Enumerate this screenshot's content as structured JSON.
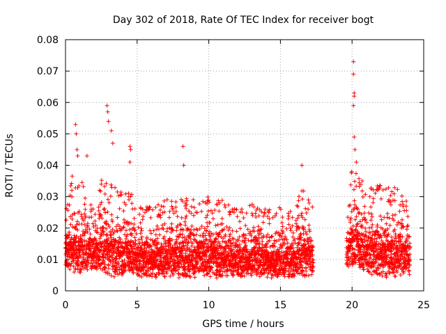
{
  "chart_data": {
    "type": "scatter",
    "title": "Day 302 of 2018, Rate Of TEC Index for receiver bogt",
    "xlabel": "GPS time / hours",
    "ylabel": "ROTI / TECUs",
    "xlim": [
      0,
      25
    ],
    "ylim": [
      0,
      0.08
    ],
    "xticks": [
      "0",
      "5",
      "10",
      "15",
      "20",
      "25"
    ],
    "yticks": [
      "0",
      "0.01",
      "0.02",
      "0.03",
      "0.04",
      "0.05",
      "0.06",
      "0.07",
      "0.08"
    ],
    "grid": true,
    "marker": "+",
    "color": "#ff0000",
    "series": [
      {
        "name": "ROTI",
        "envelope": [
          {
            "x": 0.0,
            "low": 0.007,
            "high": 0.025
          },
          {
            "x": 0.5,
            "low": 0.006,
            "high": 0.038
          },
          {
            "x": 1.0,
            "low": 0.005,
            "high": 0.036
          },
          {
            "x": 1.5,
            "low": 0.006,
            "high": 0.033
          },
          {
            "x": 2.0,
            "low": 0.007,
            "high": 0.026
          },
          {
            "x": 2.5,
            "low": 0.005,
            "high": 0.036
          },
          {
            "x": 3.0,
            "low": 0.005,
            "high": 0.035
          },
          {
            "x": 3.5,
            "low": 0.004,
            "high": 0.033
          },
          {
            "x": 4.0,
            "low": 0.004,
            "high": 0.031
          },
          {
            "x": 4.5,
            "low": 0.005,
            "high": 0.032
          },
          {
            "x": 5.0,
            "low": 0.004,
            "high": 0.027
          },
          {
            "x": 6.0,
            "low": 0.004,
            "high": 0.027
          },
          {
            "x": 7.0,
            "low": 0.004,
            "high": 0.029
          },
          {
            "x": 8.0,
            "low": 0.004,
            "high": 0.031
          },
          {
            "x": 9.0,
            "low": 0.004,
            "high": 0.029
          },
          {
            "x": 10.0,
            "low": 0.004,
            "high": 0.03
          },
          {
            "x": 11.0,
            "low": 0.004,
            "high": 0.029
          },
          {
            "x": 12.0,
            "low": 0.004,
            "high": 0.026
          },
          {
            "x": 13.0,
            "low": 0.004,
            "high": 0.028
          },
          {
            "x": 14.0,
            "low": 0.004,
            "high": 0.026
          },
          {
            "x": 15.0,
            "low": 0.004,
            "high": 0.027
          },
          {
            "x": 16.0,
            "low": 0.004,
            "high": 0.026
          },
          {
            "x": 16.5,
            "low": 0.004,
            "high": 0.034
          },
          {
            "x": 17.2,
            "low": 0.005,
            "high": 0.027
          },
          {
            "x": 19.7,
            "low": 0.007,
            "high": 0.024
          },
          {
            "x": 20.0,
            "low": 0.007,
            "high": 0.04
          },
          {
            "x": 21.0,
            "low": 0.005,
            "high": 0.033
          },
          {
            "x": 22.0,
            "low": 0.004,
            "high": 0.034
          },
          {
            "x": 23.0,
            "low": 0.004,
            "high": 0.033
          },
          {
            "x": 24.0,
            "low": 0.005,
            "high": 0.03
          }
        ],
        "gaps": [
          [
            17.3,
            19.6
          ]
        ],
        "peaks": [
          {
            "x": 0.7,
            "y": 0.053
          },
          {
            "x": 0.75,
            "y": 0.05
          },
          {
            "x": 0.8,
            "y": 0.045
          },
          {
            "x": 0.85,
            "y": 0.043
          },
          {
            "x": 1.5,
            "y": 0.043
          },
          {
            "x": 2.9,
            "y": 0.059
          },
          {
            "x": 2.95,
            "y": 0.057
          },
          {
            "x": 3.0,
            "y": 0.054
          },
          {
            "x": 3.2,
            "y": 0.051
          },
          {
            "x": 3.3,
            "y": 0.047
          },
          {
            "x": 4.5,
            "y": 0.046
          },
          {
            "x": 4.55,
            "y": 0.045
          },
          {
            "x": 4.5,
            "y": 0.041
          },
          {
            "x": 8.2,
            "y": 0.046
          },
          {
            "x": 8.25,
            "y": 0.04
          },
          {
            "x": 16.5,
            "y": 0.04
          },
          {
            "x": 20.1,
            "y": 0.073
          },
          {
            "x": 20.1,
            "y": 0.069
          },
          {
            "x": 20.15,
            "y": 0.063
          },
          {
            "x": 20.15,
            "y": 0.062
          },
          {
            "x": 20.1,
            "y": 0.059
          },
          {
            "x": 20.15,
            "y": 0.049
          },
          {
            "x": 20.2,
            "y": 0.045
          },
          {
            "x": 20.3,
            "y": 0.041
          }
        ]
      }
    ]
  }
}
